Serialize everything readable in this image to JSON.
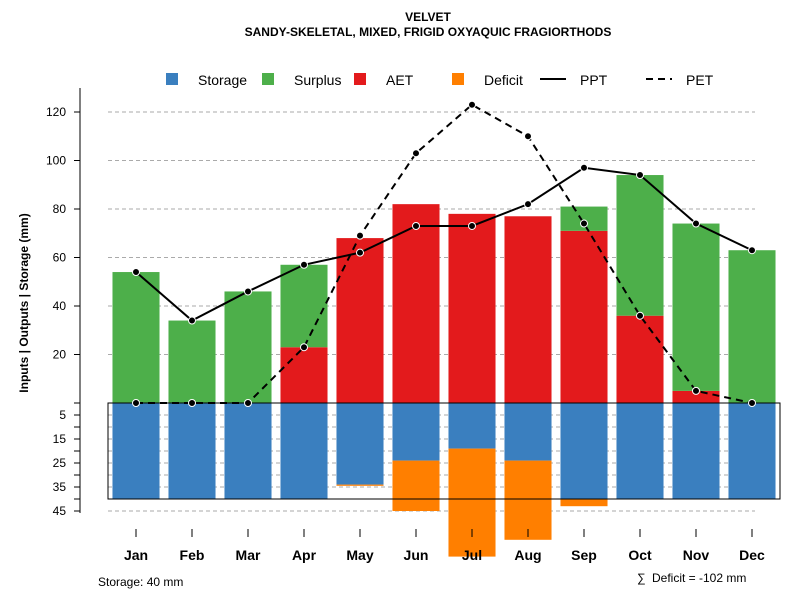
{
  "chart_data": {
    "type": "bar",
    "title": "VELVET",
    "subtitle": "SANDY-SKELETAL, MIXED, FRIGID OXYAQUIC FRAGIORTHODS",
    "ylabel": "Inputs | Outputs | Storage    (mm)",
    "categories": [
      "Jan",
      "Feb",
      "Mar",
      "Apr",
      "May",
      "Jun",
      "Jul",
      "Aug",
      "Sep",
      "Oct",
      "Nov",
      "Dec"
    ],
    "upper_ticks": [
      "120",
      "100",
      "80",
      "60",
      "40",
      "20"
    ],
    "upper_tick_values": [
      120,
      100,
      80,
      60,
      40,
      20
    ],
    "lower_ticks": [
      "5",
      "15",
      "25",
      "35",
      "45"
    ],
    "lower_tick_values": [
      5,
      15,
      25,
      35,
      45
    ],
    "upper_ylim": [
      0,
      125
    ],
    "lower_ylim": [
      0,
      45
    ],
    "series": [
      {
        "name": "AET",
        "values": [
          0,
          0,
          0,
          23,
          68,
          82,
          78,
          77,
          71,
          36,
          5,
          0
        ]
      },
      {
        "name": "Surplus",
        "values": [
          54,
          34,
          46,
          34,
          0,
          0,
          0,
          0,
          10,
          58,
          69,
          63
        ]
      },
      {
        "name": "Storage",
        "values": [
          40,
          40,
          40,
          40,
          34,
          24,
          19,
          24,
          40,
          40,
          40,
          40
        ]
      },
      {
        "name": "Deficit",
        "values": [
          0,
          0,
          0,
          0,
          0.5,
          21,
          45,
          33,
          3,
          0,
          0,
          0
        ]
      },
      {
        "name": "PPT",
        "values": [
          54,
          34,
          46,
          57,
          62,
          73,
          73,
          82,
          97,
          94,
          74,
          63
        ]
      },
      {
        "name": "PET",
        "values": [
          0,
          0,
          0,
          23,
          69,
          103,
          123,
          110,
          74,
          36,
          5,
          0
        ]
      }
    ],
    "storage_capacity": 40,
    "legend": [
      {
        "label": "Storage",
        "kind": "box",
        "color": "#3a7fbf"
      },
      {
        "label": "Surplus",
        "kind": "box",
        "color": "#4daf4a"
      },
      {
        "label": "AET",
        "kind": "box",
        "color": "#e31a1c"
      },
      {
        "label": "Deficit",
        "kind": "box",
        "color": "#ff7f00"
      },
      {
        "label": "PPT",
        "kind": "solid",
        "color": "#000000"
      },
      {
        "label": "PET",
        "kind": "dashed",
        "color": "#000000"
      }
    ],
    "colors": {
      "storage": "#3a7fbf",
      "surplus": "#4daf4a",
      "aet": "#e31a1c",
      "deficit": "#ff7f00",
      "grid": "#aaaaaa",
      "line": "#000000"
    },
    "legend_position": "top"
  },
  "footer": {
    "storage_label": "Storage: 40 mm",
    "deficit_symbol": "∑",
    "deficit_label": "Deficit = -102 mm"
  }
}
